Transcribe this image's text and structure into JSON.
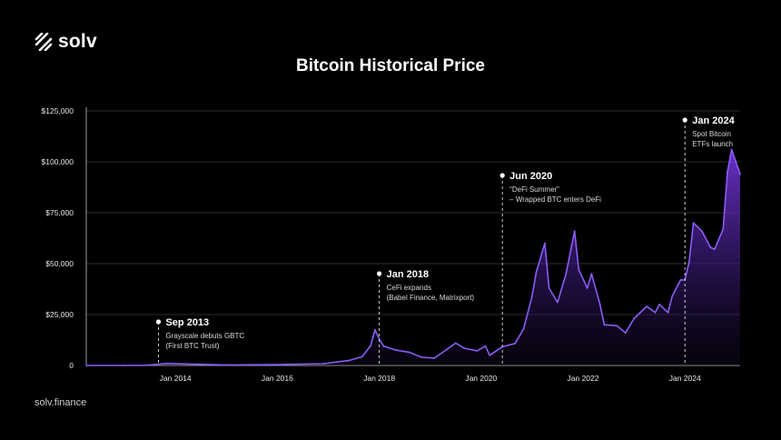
{
  "brand": {
    "logo_text": "solv",
    "footer": "solv.finance",
    "accent": "#8B5CF6"
  },
  "chart_data": {
    "type": "area",
    "title": "Bitcoin Historical Price",
    "xlabel": "",
    "ylabel": "",
    "ylim": [
      0,
      125000
    ],
    "xlim": [
      "2012-04",
      "2025-02"
    ],
    "grid": true,
    "y_ticks": [
      {
        "value": 0,
        "label": "0"
      },
      {
        "value": 25000,
        "label": "$25,000"
      },
      {
        "value": 50000,
        "label": "$50,000"
      },
      {
        "value": 75000,
        "label": "$75,000"
      },
      {
        "value": 100000,
        "label": "$100,000"
      },
      {
        "value": 125000,
        "label": "$125,000"
      }
    ],
    "x_ticks": [
      {
        "date": "2014-01",
        "label": "Jan 2014"
      },
      {
        "date": "2016-01",
        "label": "Jan 2016"
      },
      {
        "date": "2018-01",
        "label": "Jan 2018"
      },
      {
        "date": "2020-01",
        "label": "Jan 2020"
      },
      {
        "date": "2022-01",
        "label": "Jan 2022"
      },
      {
        "date": "2024-01",
        "label": "Jan 2024"
      }
    ],
    "series": [
      {
        "color": "#8B5CF6",
        "points": [
          [
            "2012-04",
            5
          ],
          [
            "2013-01",
            14
          ],
          [
            "2013-06",
            100
          ],
          [
            "2013-11",
            1000
          ],
          [
            "2014-06",
            600
          ],
          [
            "2015-01",
            250
          ],
          [
            "2016-01",
            400
          ],
          [
            "2016-12",
            900
          ],
          [
            "2017-06",
            2500
          ],
          [
            "2017-09",
            4300
          ],
          [
            "2017-11",
            9800
          ],
          [
            "2017-12",
            17500
          ],
          [
            "2018-01",
            13000
          ],
          [
            "2018-02",
            9500
          ],
          [
            "2018-05",
            7500
          ],
          [
            "2018-08",
            6500
          ],
          [
            "2018-11",
            4000
          ],
          [
            "2019-02",
            3600
          ],
          [
            "2019-05",
            8000
          ],
          [
            "2019-07",
            11000
          ],
          [
            "2019-09",
            8500
          ],
          [
            "2019-12",
            7200
          ],
          [
            "2020-02",
            9500
          ],
          [
            "2020-03",
            5000
          ],
          [
            "2020-06",
            9200
          ],
          [
            "2020-09",
            10800
          ],
          [
            "2020-11",
            18000
          ],
          [
            "2021-01",
            34000
          ],
          [
            "2021-02",
            46000
          ],
          [
            "2021-04",
            60000
          ],
          [
            "2021-05",
            38000
          ],
          [
            "2021-07",
            31000
          ],
          [
            "2021-09",
            45000
          ],
          [
            "2021-11",
            66000
          ],
          [
            "2021-12",
            47000
          ],
          [
            "2022-02",
            38000
          ],
          [
            "2022-03",
            45000
          ],
          [
            "2022-05",
            30000
          ],
          [
            "2022-06",
            20000
          ],
          [
            "2022-09",
            19500
          ],
          [
            "2022-11",
            16000
          ],
          [
            "2023-01",
            23000
          ],
          [
            "2023-04",
            29000
          ],
          [
            "2023-06",
            26000
          ],
          [
            "2023-07",
            30000
          ],
          [
            "2023-09",
            26000
          ],
          [
            "2023-10",
            34000
          ],
          [
            "2023-12",
            42000
          ],
          [
            "2024-01",
            42000
          ],
          [
            "2024-02",
            51000
          ],
          [
            "2024-03",
            70000
          ],
          [
            "2024-05",
            66000
          ],
          [
            "2024-07",
            58000
          ],
          [
            "2024-08",
            57000
          ],
          [
            "2024-10",
            67000
          ],
          [
            "2024-11",
            95000
          ],
          [
            "2024-12",
            106000
          ],
          [
            "2025-01",
            100000
          ],
          [
            "2025-02",
            94000
          ]
        ]
      }
    ],
    "annotations": [
      {
        "date": "2013-09",
        "title": "Sep 2013",
        "lines": [
          "Grayscale debuts GBTC",
          "(First BTC Trust)"
        ]
      },
      {
        "date": "2018-01",
        "title": "Jan 2018",
        "lines": [
          "CeFi expands",
          "(Babel Finance, Matrixport)"
        ]
      },
      {
        "date": "2020-06",
        "title": "Jun 2020",
        "lines": [
          "“DeFi Summer”",
          "– Wrapped BTC enters DeFi"
        ]
      },
      {
        "date": "2024-01",
        "title": "Jan 2024",
        "lines": [
          "Spot Bitcoin",
          "ETFs launch"
        ]
      }
    ]
  }
}
